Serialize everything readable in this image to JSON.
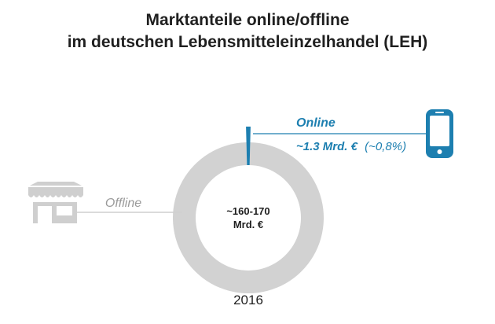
{
  "title_line1": "Marktanteile online/offline",
  "title_line2": "im deutschen Lebensmitteleinzelhandel (LEH)",
  "icons": {
    "store": "store-icon",
    "phone": "smartphone-icon"
  },
  "colors": {
    "offline": "#d2d2d2",
    "online": "#1d7fb0",
    "store_icon": "#cfcfcf",
    "text_muted": "#9a9a9a",
    "text_dark": "#1f1f1f"
  },
  "chart_data": {
    "type": "pie",
    "style": "donut",
    "year": "2016",
    "center_label_line1": "~160-170",
    "center_label_line2": "Mrd. €",
    "slices": [
      {
        "name": "Offline",
        "share_percent": 99.2,
        "label": "Offline"
      },
      {
        "name": "Online",
        "share_percent": 0.8,
        "label": "Online",
        "value_label": "~1.3 Mrd. €",
        "share_label": "(~0,8%)"
      }
    ]
  }
}
